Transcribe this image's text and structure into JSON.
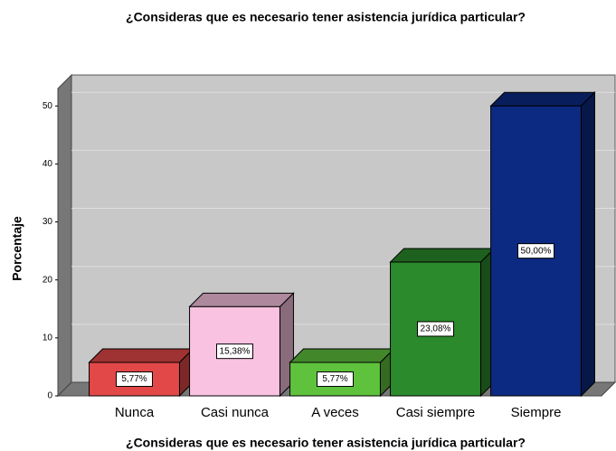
{
  "chart_data": {
    "type": "bar3d",
    "title": "¿Consideras que es necesario tener asistencia jurídica particular?",
    "x_label": "¿Consideras que es necesario tener asistencia jurídica particular?",
    "y_label": "Porcentaje",
    "categories": [
      "Nunca",
      "Casi nunca",
      "A veces",
      "Casi siempre",
      "Siempre"
    ],
    "values": [
      5.77,
      15.38,
      5.77,
      23.08,
      50
    ],
    "value_labels": [
      "5,77%",
      "15,38%",
      "5,77%",
      "23,08%",
      "50,00%"
    ],
    "colors": [
      "#e34848",
      "#f9c2e0",
      "#5ec23c",
      "#2b8a2b",
      "#0c2a82"
    ],
    "ylim": [
      0,
      53
    ],
    "yticks": [
      0,
      10,
      20,
      30,
      40,
      50
    ],
    "grid": true
  }
}
